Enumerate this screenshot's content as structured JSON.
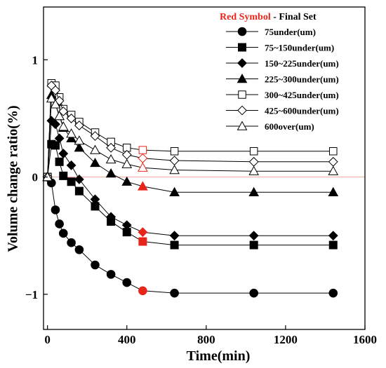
{
  "chart_data": {
    "type": "line",
    "xlabel": "Time(min)",
    "ylabel": "Volume change ratio(%)",
    "xlim": [
      -20,
      1600
    ],
    "ylim": [
      -1.3,
      1.45
    ],
    "x_ticks": [
      {
        "value": 0,
        "label": "0"
      },
      {
        "value": 400,
        "label": "400"
      },
      {
        "value": 800,
        "label": "800"
      },
      {
        "value": 1200,
        "label": "1200"
      },
      {
        "value": 1600,
        "label": "1600"
      }
    ],
    "y_ticks": [
      {
        "value": 1,
        "label": "1"
      },
      {
        "value": 0,
        "label": "0"
      },
      {
        "value": -1,
        "label": "−1"
      }
    ],
    "reference_line": {
      "y": 0,
      "color": "#f4a9a0"
    },
    "legend": {
      "title_red": "Red Symbol",
      "title_rest": " - Final Set",
      "title_red_color": "#e8251b",
      "placement": "top-right"
    },
    "highlight_color": "#e8251b",
    "series": [
      {
        "name": "75under(um)",
        "marker": "circle",
        "filled": true,
        "x": [
          0,
          20,
          40,
          60,
          80,
          120,
          160,
          240,
          320,
          400,
          480,
          640,
          1040,
          1440
        ],
        "y": [
          0,
          -0.05,
          -0.28,
          -0.4,
          -0.48,
          -0.56,
          -0.62,
          -0.75,
          -0.83,
          -0.9,
          -0.97,
          -0.99,
          -0.99,
          -0.99
        ],
        "final_index": 10
      },
      {
        "name": "75~150under(um)",
        "marker": "square",
        "filled": true,
        "x": [
          0,
          20,
          40,
          60,
          80,
          120,
          160,
          240,
          320,
          400,
          480,
          640,
          1040,
          1440
        ],
        "y": [
          0,
          0.28,
          0.27,
          0.13,
          0.01,
          -0.04,
          -0.12,
          -0.25,
          -0.38,
          -0.47,
          -0.55,
          -0.58,
          -0.58,
          -0.58
        ],
        "final_index": 10
      },
      {
        "name": "150~225under(um)",
        "marker": "diamond",
        "filled": true,
        "x": [
          0,
          20,
          40,
          60,
          80,
          120,
          160,
          240,
          320,
          400,
          480,
          640,
          1040,
          1440
        ],
        "y": [
          0,
          0.48,
          0.45,
          0.33,
          0.2,
          0.1,
          -0.02,
          -0.19,
          -0.34,
          -0.41,
          -0.47,
          -0.5,
          -0.5,
          -0.5
        ],
        "final_index": 10
      },
      {
        "name": "225~300under(um)",
        "marker": "triangle",
        "filled": true,
        "x": [
          0,
          20,
          40,
          60,
          80,
          120,
          160,
          240,
          320,
          400,
          480,
          640,
          1040,
          1440
        ],
        "y": [
          0,
          0.7,
          0.62,
          0.52,
          0.42,
          0.33,
          0.25,
          0.12,
          0.03,
          -0.04,
          -0.08,
          -0.13,
          -0.13,
          -0.13
        ],
        "final_index": 10
      },
      {
        "name": "300~425under(um)",
        "marker": "square",
        "filled": false,
        "x": [
          0,
          20,
          40,
          60,
          80,
          120,
          160,
          240,
          320,
          400,
          480,
          640,
          1040,
          1440
        ],
        "y": [
          0,
          0.8,
          0.78,
          0.68,
          0.58,
          0.53,
          0.47,
          0.38,
          0.3,
          0.25,
          0.23,
          0.22,
          0.22,
          0.22
        ],
        "final_index": 10
      },
      {
        "name": "425~600under(um)",
        "marker": "diamond",
        "filled": false,
        "x": [
          0,
          20,
          40,
          60,
          80,
          120,
          160,
          240,
          320,
          400,
          480,
          640,
          1040,
          1440
        ],
        "y": [
          0,
          0.78,
          0.74,
          0.65,
          0.56,
          0.5,
          0.44,
          0.35,
          0.25,
          0.19,
          0.16,
          0.14,
          0.13,
          0.13
        ],
        "final_index": 10
      },
      {
        "name": "600over(um)",
        "marker": "triangle",
        "filled": false,
        "x": [
          0,
          20,
          40,
          60,
          80,
          120,
          160,
          240,
          320,
          400,
          480,
          640,
          1040,
          1440
        ],
        "y": [
          0,
          0.67,
          0.62,
          0.52,
          0.43,
          0.37,
          0.31,
          0.23,
          0.15,
          0.11,
          0.08,
          0.06,
          0.05,
          0.05
        ],
        "final_index": 10
      }
    ]
  }
}
